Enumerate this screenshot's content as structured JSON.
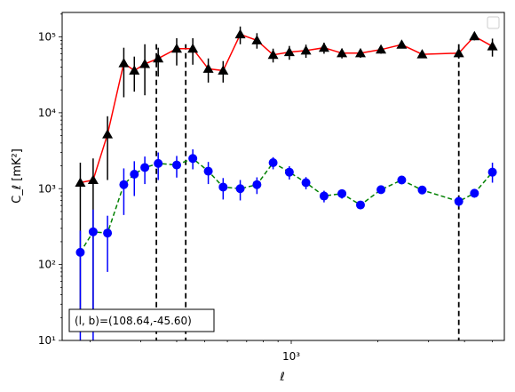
{
  "chart_data": {
    "type": "line",
    "xlabel": "ℓ",
    "ylabel": "C_ℓ  [mK²]",
    "x_scale": "log",
    "y_scale": "log",
    "xlim": [
      160,
      5500
    ],
    "ylim": [
      10,
      210000
    ],
    "x_ticks": [
      {
        "value": 1000,
        "label": "10³"
      }
    ],
    "y_ticks": [
      {
        "value": 10,
        "label": "10¹"
      },
      {
        "value": 100,
        "label": "10²"
      },
      {
        "value": 1000,
        "label": "10³"
      },
      {
        "value": 10000,
        "label": "10⁴"
      },
      {
        "value": 100000,
        "label": "10⁵"
      }
    ],
    "vlines": [
      340,
      430,
      3820
    ],
    "legend": {
      "placement": "top-right",
      "entries": []
    },
    "annotation": "(l, b)=(108.64,-45.60)",
    "series": [
      {
        "marker": "triangle",
        "line_style": "solid",
        "line_color": "#ff0000",
        "marker_color": "#000000",
        "error_color": "#000000",
        "points": [
          {
            "x": 185,
            "y": 1200,
            "lo": 20,
            "hi": 2200
          },
          {
            "x": 205,
            "y": 1300,
            "lo": 25,
            "hi": 2500
          },
          {
            "x": 230,
            "y": 5200,
            "lo": 1300,
            "hi": 9000
          },
          {
            "x": 262,
            "y": 45000,
            "lo": 16000,
            "hi": 72000
          },
          {
            "x": 285,
            "y": 36000,
            "lo": 19000,
            "hi": 55000
          },
          {
            "x": 310,
            "y": 44000,
            "lo": 17000,
            "hi": 80000
          },
          {
            "x": 345,
            "y": 52000,
            "lo": 30000,
            "hi": 72000
          },
          {
            "x": 400,
            "y": 70000,
            "lo": 42000,
            "hi": 96000
          },
          {
            "x": 455,
            "y": 70000,
            "lo": 43000,
            "hi": 96000
          },
          {
            "x": 515,
            "y": 38000,
            "lo": 25000,
            "hi": 52000
          },
          {
            "x": 580,
            "y": 36000,
            "lo": 25000,
            "hi": 48000
          },
          {
            "x": 665,
            "y": 108000,
            "lo": 80000,
            "hi": 137000
          },
          {
            "x": 760,
            "y": 90000,
            "lo": 70000,
            "hi": 112000
          },
          {
            "x": 865,
            "y": 58000,
            "lo": 46000,
            "hi": 70000
          },
          {
            "x": 985,
            "y": 63000,
            "lo": 50000,
            "hi": 76000
          },
          {
            "x": 1125,
            "y": 66000,
            "lo": 53000,
            "hi": 79000
          },
          {
            "x": 1300,
            "y": 72000,
            "lo": 60000,
            "hi": 84000
          },
          {
            "x": 1500,
            "y": 61000,
            "lo": 52000,
            "hi": 70000
          },
          {
            "x": 1740,
            "y": 61000,
            "lo": 53000,
            "hi": 69000
          },
          {
            "x": 2050,
            "y": 68000,
            "lo": 60000,
            "hi": 76000
          },
          {
            "x": 2420,
            "y": 79000,
            "lo": 71000,
            "hi": 87000
          },
          {
            "x": 2850,
            "y": 59000,
            "lo": 53000,
            "hi": 65000
          },
          {
            "x": 3820,
            "y": 61000,
            "lo": 52000,
            "hi": 70000
          },
          {
            "x": 4330,
            "y": 102000,
            "lo": 90000,
            "hi": 115000
          },
          {
            "x": 5000,
            "y": 75000,
            "lo": 55000,
            "hi": 95000
          }
        ]
      },
      {
        "marker": "circle",
        "line_style": "dashed",
        "line_color": "#008000",
        "marker_color": "#0000ff",
        "error_color": "#0000ff",
        "points": [
          {
            "x": 185,
            "y": 145,
            "lo": 10,
            "hi": 280
          },
          {
            "x": 205,
            "y": 270,
            "lo": 10,
            "hi": 530
          },
          {
            "x": 230,
            "y": 260,
            "lo": 80,
            "hi": 440
          },
          {
            "x": 262,
            "y": 1130,
            "lo": 450,
            "hi": 1850
          },
          {
            "x": 285,
            "y": 1550,
            "lo": 800,
            "hi": 2300
          },
          {
            "x": 310,
            "y": 1900,
            "lo": 1150,
            "hi": 2650
          },
          {
            "x": 345,
            "y": 2150,
            "lo": 1300,
            "hi": 3000
          },
          {
            "x": 400,
            "y": 2050,
            "lo": 1400,
            "hi": 2700
          },
          {
            "x": 455,
            "y": 2500,
            "lo": 1800,
            "hi": 3300
          },
          {
            "x": 515,
            "y": 1700,
            "lo": 1150,
            "hi": 2250
          },
          {
            "x": 580,
            "y": 1050,
            "lo": 720,
            "hi": 1380
          },
          {
            "x": 665,
            "y": 1000,
            "lo": 700,
            "hi": 1300
          },
          {
            "x": 760,
            "y": 1130,
            "lo": 850,
            "hi": 1410
          },
          {
            "x": 865,
            "y": 2200,
            "lo": 1800,
            "hi": 2600
          },
          {
            "x": 985,
            "y": 1650,
            "lo": 1320,
            "hi": 1980
          },
          {
            "x": 1125,
            "y": 1200,
            "lo": 980,
            "hi": 1420
          },
          {
            "x": 1300,
            "y": 800,
            "lo": 660,
            "hi": 940
          },
          {
            "x": 1500,
            "y": 860,
            "lo": 740,
            "hi": 980
          },
          {
            "x": 1740,
            "y": 610,
            "lo": 540,
            "hi": 680
          },
          {
            "x": 2050,
            "y": 970,
            "lo": 870,
            "hi": 1070
          },
          {
            "x": 2420,
            "y": 1300,
            "lo": 1180,
            "hi": 1420
          },
          {
            "x": 2850,
            "y": 960,
            "lo": 870,
            "hi": 1050
          },
          {
            "x": 3820,
            "y": 680,
            "lo": 580,
            "hi": 780
          },
          {
            "x": 4330,
            "y": 870,
            "lo": 760,
            "hi": 980
          },
          {
            "x": 5000,
            "y": 1650,
            "lo": 1200,
            "hi": 2200
          }
        ]
      }
    ]
  }
}
